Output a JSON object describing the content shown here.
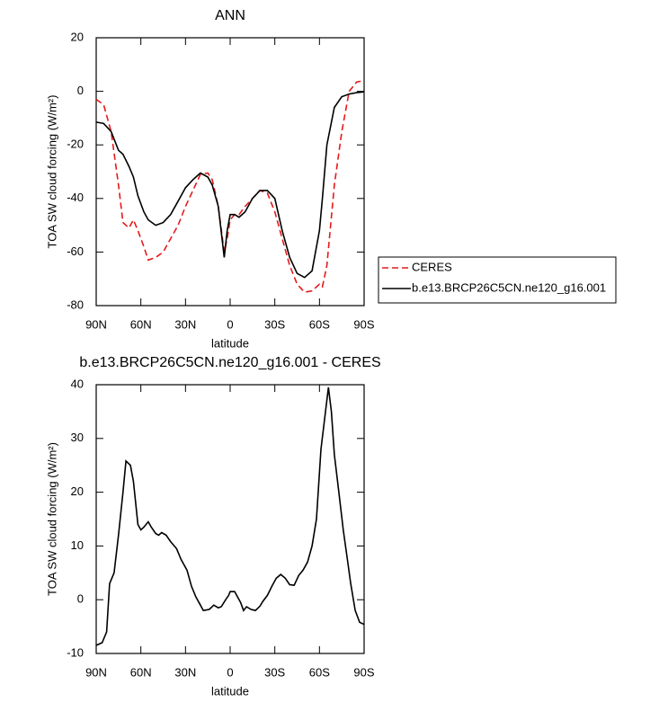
{
  "chart_data": [
    {
      "type": "line",
      "title": "ANN",
      "xlabel": "latitude",
      "ylabel": "TOA SW cloud forcing (W/m²)",
      "x": [
        90,
        85,
        80,
        75,
        72,
        68,
        65,
        62,
        58,
        55,
        50,
        45,
        40,
        35,
        30,
        25,
        20,
        15,
        12,
        8,
        4,
        2,
        0,
        -3,
        -6,
        -10,
        -15,
        -20,
        -25,
        -30,
        -35,
        -40,
        -45,
        -50,
        -55,
        -60,
        -62,
        -65,
        -70,
        -75,
        -80,
        -85,
        -90
      ],
      "series": [
        {
          "name": "CERES",
          "color": "#e41a1c",
          "line_style": "dashed",
          "values": [
            -3,
            -5,
            -15,
            -35,
            -49,
            -51,
            -48,
            -52,
            -58,
            -63,
            -62,
            -60,
            -55,
            -50,
            -43,
            -37,
            -31,
            -30.5,
            -33,
            -43,
            -60,
            -55,
            -48,
            -46,
            -46,
            -43,
            -40,
            -37,
            -38,
            -45,
            -55,
            -65,
            -72,
            -75,
            -74.5,
            -72,
            -73,
            -65,
            -35,
            -15,
            0,
            3.5,
            4
          ]
        },
        {
          "name": "b.e13.BRCP26C5CN.ne120_g16.001",
          "color": "#000000",
          "line_style": "solid",
          "values": [
            -11.5,
            -12,
            -15,
            -22,
            -23.5,
            -28,
            -32,
            -39,
            -45,
            -48,
            -50,
            -49,
            -46,
            -41,
            -36,
            -33,
            -30.5,
            -32,
            -35,
            -43,
            -62,
            -52,
            -46,
            -46,
            -47,
            -45,
            -40,
            -37,
            -37,
            -40,
            -52,
            -62,
            -68,
            -69.5,
            -67,
            -52,
            -40,
            -20,
            -6,
            -2,
            -1,
            -0.5,
            -0.2
          ]
        }
      ],
      "xlim": [
        90,
        -90
      ],
      "xticks": [
        {
          "value": 90,
          "label": "90N"
        },
        {
          "value": 60,
          "label": "60N"
        },
        {
          "value": 30,
          "label": "30N"
        },
        0,
        {
          "value": -30,
          "label": "30S"
        },
        {
          "value": -60,
          "label": "60S"
        },
        {
          "value": -90,
          "label": "90S"
        }
      ],
      "ylim": [
        -80,
        20
      ],
      "yticks": [
        -80,
        -60,
        -40,
        -20,
        0,
        20
      ],
      "legend": "right"
    },
    {
      "type": "line",
      "title": "b.e13.BRCP26C5CN.ne120_g16.001 - CERES",
      "xlabel": "latitude",
      "ylabel": "TOA SW cloud forcing (W/m²)",
      "x": [
        90,
        86,
        83,
        81,
        78,
        75,
        72,
        70,
        67,
        65,
        62,
        60,
        58,
        55,
        53,
        50,
        48,
        46,
        43,
        40,
        36,
        33,
        29,
        26,
        23,
        20,
        18,
        14,
        11,
        8,
        6,
        3,
        1,
        0,
        -3,
        -5,
        -7,
        -9,
        -11,
        -14,
        -17,
        -20,
        -22,
        -25,
        -28,
        -31,
        -34,
        -37,
        -40,
        -43,
        -46,
        -49,
        -52,
        -55,
        -58,
        -61,
        -66,
        -68,
        -70,
        -73,
        -76,
        -79,
        -81,
        -84,
        -87,
        -90
      ],
      "color": "#000000",
      "values": [
        -8.5,
        -8,
        -6,
        3,
        5,
        12,
        20,
        25.8,
        25,
        22,
        14,
        13,
        13.5,
        14.5,
        13.5,
        12.3,
        12,
        12.5,
        12,
        10.8,
        9.5,
        7.5,
        5.5,
        2.5,
        0.5,
        -1,
        -2,
        -1.8,
        -1,
        -1.5,
        -1.3,
        0,
        0.8,
        1.5,
        1.5,
        0.5,
        -0.5,
        -2,
        -1.3,
        -1.8,
        -2,
        -1.2,
        -0.3,
        0.8,
        2.5,
        4,
        4.7,
        4,
        2.8,
        2.7,
        4.5,
        5.5,
        7,
        10,
        15,
        28,
        39.5,
        35,
        27,
        20,
        13,
        7,
        3,
        -2,
        -4.2,
        -4.6
      ],
      "xlim": [
        90,
        -90
      ],
      "xticks": [
        {
          "value": 90,
          "label": "90N"
        },
        {
          "value": 60,
          "label": "60N"
        },
        {
          "value": 30,
          "label": "30N"
        },
        0,
        {
          "value": -30,
          "label": "30S"
        },
        {
          "value": -60,
          "label": "60S"
        },
        {
          "value": -90,
          "label": "90S"
        }
      ],
      "ylim": [
        -10,
        40
      ],
      "yticks": [
        -10,
        0,
        10,
        20,
        30,
        40
      ]
    }
  ]
}
